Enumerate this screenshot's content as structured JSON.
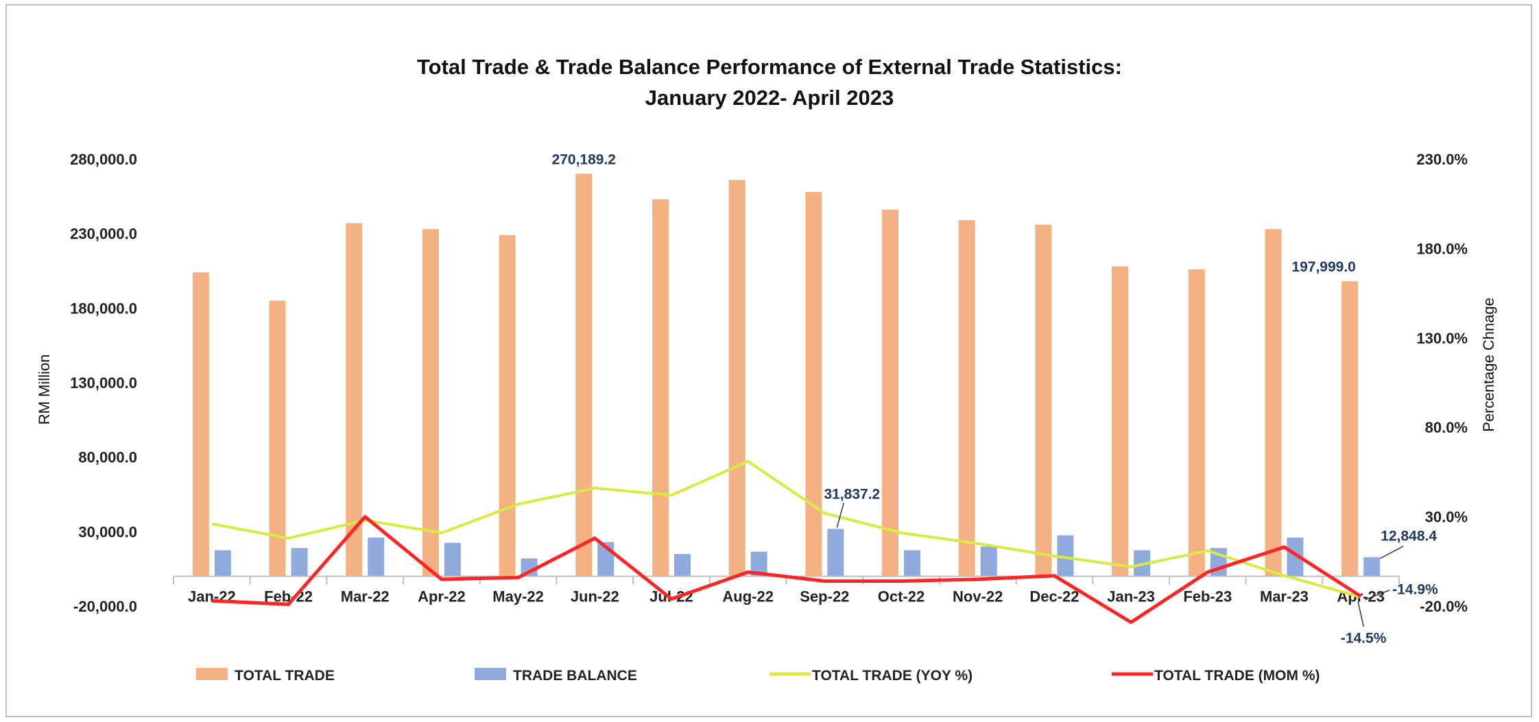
{
  "chart_data": {
    "type": "bar",
    "title": "Total Trade & Trade Balance Performance of External Trade Statistics:",
    "subtitle": "January 2022- April 2023",
    "ylabel": "RM Million",
    "y2label": "Percentage Chnage",
    "ylim": [
      -20000,
      280000
    ],
    "y2lim": [
      -20,
      230
    ],
    "y_ticks": [
      "280,000.0",
      "230,000.0",
      "180,000.0",
      "130,000.0",
      "80,000.0",
      "30,000.0",
      "-20,000.0"
    ],
    "y2_ticks": [
      "230.0%",
      "180.0%",
      "130.0%",
      "80.0%",
      "30.0%",
      "-20.0%"
    ],
    "categories": [
      "Jan-22",
      "Feb-22",
      "Mar-22",
      "Apr-22",
      "May-22",
      "Jun-22",
      "Jul-22",
      "Aug-22",
      "Sep-22",
      "Oct-22",
      "Nov-22",
      "Dec-22",
      "Jan-23",
      "Feb-23",
      "Mar-23",
      "Apr-23"
    ],
    "series": [
      {
        "name": "TOTAL TRADE",
        "kind": "bar",
        "axis": "left",
        "color": "#f4b183",
        "values": [
          204000,
          185000,
          237000,
          233000,
          229000,
          270189.2,
          253000,
          266000,
          258000,
          246000,
          239000,
          236000,
          208000,
          206000,
          233000,
          197999.0
        ]
      },
      {
        "name": "TRADE BALANCE",
        "kind": "bar",
        "axis": "left",
        "color": "#8faadc",
        "values": [
          17500,
          19000,
          26000,
          22500,
          12000,
          23000,
          15000,
          16500,
          31837.2,
          17500,
          20000,
          27500,
          17500,
          19000,
          26000,
          12848.4
        ]
      },
      {
        "name": "TOTAL TRADE (YOY %)",
        "kind": "line",
        "axis": "right",
        "color": "#d9ea42",
        "values": [
          26,
          18,
          28,
          21,
          37,
          46,
          42,
          61,
          32,
          21,
          15,
          8,
          2,
          11,
          -3,
          -14.9
        ]
      },
      {
        "name": "TOTAL TRADE (MOM %)",
        "kind": "line",
        "axis": "right",
        "color": "#ff2525",
        "values": [
          -17,
          -19,
          30,
          -5,
          -4,
          18,
          -16,
          -1,
          -6,
          -6,
          -5,
          -3,
          -29,
          -1,
          13,
          -14.5
        ]
      }
    ],
    "data_labels": {
      "jun_total": "270,189.2",
      "apr_total": "197,999.0",
      "sep_balance": "31,837.2",
      "apr_balance": "12,848.4",
      "apr_yoy": "-14.9%",
      "apr_mom": "-14.5%"
    },
    "legend_position": "bottom",
    "grid": false
  }
}
